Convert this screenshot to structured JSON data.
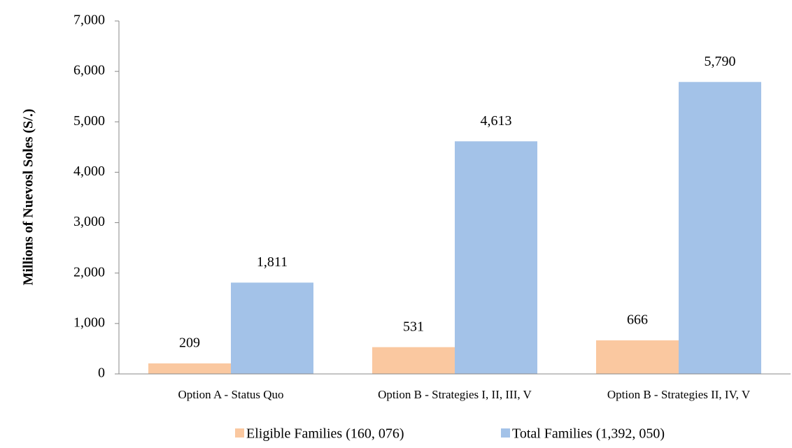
{
  "chart_data": {
    "type": "bar",
    "y_label": "Millions of Nuevosl Soles (S/.)",
    "categories": [
      "Option A - Status Quo",
      "Option B - Strategies I, II, III, V",
      "Option B - Strategies II, IV, V"
    ],
    "series": [
      {
        "name": "Eligible Families (160, 076)",
        "color": "#fac8a0",
        "values": [
          209,
          531,
          666
        ],
        "value_labels": [
          "209",
          "531",
          "666"
        ]
      },
      {
        "name": "Total Families (1,392, 050)",
        "color": "#a3c2e8",
        "values": [
          1811,
          4613,
          5790
        ],
        "value_labels": [
          "1,811",
          "4,613",
          "5,790"
        ]
      }
    ],
    "ylim": [
      0,
      7000
    ],
    "yticks": [
      0,
      {
        "value": 1000,
        "label": "1,000"
      },
      {
        "value": 2000,
        "label": "2,000"
      },
      {
        "value": 3000,
        "label": "3,000"
      },
      {
        "value": 4000,
        "label": "4,000"
      },
      {
        "value": 5000,
        "label": "5,000"
      },
      {
        "value": 6000,
        "label": "6,000"
      },
      {
        "value": 7000,
        "label": "7,000"
      }
    ],
    "legend": "bottom"
  }
}
